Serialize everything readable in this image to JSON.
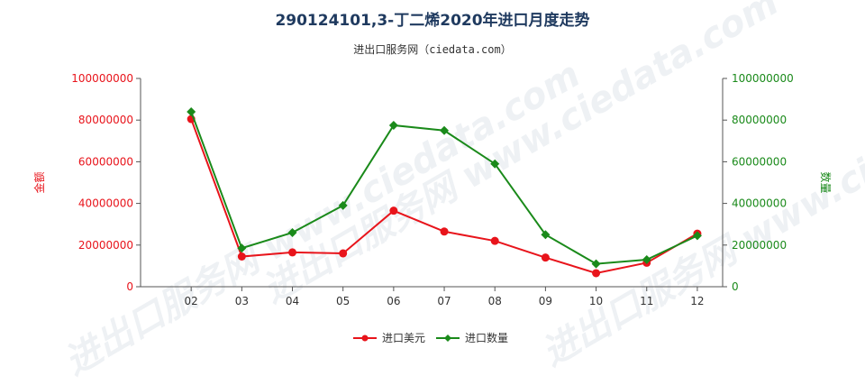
{
  "chart_data": {
    "type": "line",
    "title": "290124101,3-丁二烯2020年进口月度走势",
    "subtitle": "进出口服务网（ciedata.com）",
    "watermark": "进出口服务网 www.ciedata.com",
    "categories": [
      "02",
      "03",
      "04",
      "05",
      "06",
      "07",
      "08",
      "09",
      "10",
      "11",
      "12"
    ],
    "y_left": {
      "label": "金额",
      "range": [
        0,
        100000000
      ],
      "ticks": [
        "0",
        "20000000",
        "40000000",
        "60000000",
        "80000000",
        "100000000"
      ],
      "color": "#e8141b"
    },
    "y_right": {
      "label": "数量",
      "range": [
        0,
        100000000
      ],
      "ticks": [
        "0",
        "20000000",
        "40000000",
        "60000000",
        "80000000",
        "100000000"
      ],
      "color": "#1a8a1a"
    },
    "series": [
      {
        "name": "进口美元",
        "axis": "left",
        "color": "#e8141b",
        "values": [
          80500000,
          14500000,
          16500000,
          16000000,
          36500000,
          26500000,
          22000000,
          14000000,
          6500000,
          11500000,
          25500000
        ]
      },
      {
        "name": "进口数量",
        "axis": "right",
        "color": "#1a8a1a",
        "values": [
          84000000,
          18500000,
          26000000,
          39000000,
          77500000,
          75000000,
          59000000,
          25000000,
          11000000,
          13000000,
          24500000
        ]
      }
    ],
    "grid": false,
    "legend_position": "bottom-center"
  }
}
